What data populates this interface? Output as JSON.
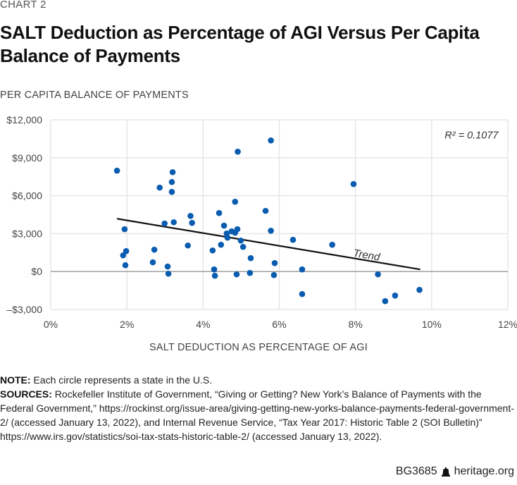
{
  "header": {
    "eyebrow": "CHART 2",
    "title": "SALT Deduction as Percentage of AGI Versus Per Capita Balance of Payments"
  },
  "chart_data": {
    "type": "scatter",
    "title": "SALT Deduction as Percentage of AGI Versus Per Capita Balance of Payments",
    "xlabel": "SALT DEDUCTION AS PERCENTAGE OF AGI",
    "ylabel": "PER CAPITA BALANCE OF PAYMENTS",
    "xlim": [
      0,
      12
    ],
    "ylim": [
      -3000,
      12000
    ],
    "x_ticks": [
      0,
      2,
      4,
      6,
      8,
      10,
      12
    ],
    "x_tick_labels": [
      "0%",
      "2%",
      "4%",
      "6%",
      "8%",
      "10%",
      "12%"
    ],
    "y_ticks": [
      -3000,
      0,
      3000,
      6000,
      9000,
      12000
    ],
    "y_tick_labels": [
      "–$3,000",
      "$0",
      "$3,000",
      "$6,000",
      "$9,000",
      "$12,000"
    ],
    "grid": true,
    "marker_color": "#0a5cb0",
    "trend": {
      "label": "Trend",
      "start": [
        1.74,
        4180
      ],
      "end": [
        9.7,
        170
      ],
      "color": "#111111"
    },
    "annotation": "R² = 0.1077",
    "points": [
      {
        "x": 1.74,
        "y": 7980
      },
      {
        "x": 1.94,
        "y": 3350
      },
      {
        "x": 1.9,
        "y": 1280
      },
      {
        "x": 1.98,
        "y": 1620
      },
      {
        "x": 1.96,
        "y": 500
      },
      {
        "x": 2.86,
        "y": 6640
      },
      {
        "x": 2.72,
        "y": 1730
      },
      {
        "x": 2.68,
        "y": 730
      },
      {
        "x": 2.99,
        "y": 3800
      },
      {
        "x": 3.07,
        "y": 400
      },
      {
        "x": 3.09,
        "y": -170
      },
      {
        "x": 3.18,
        "y": 7080
      },
      {
        "x": 3.2,
        "y": 7860
      },
      {
        "x": 3.18,
        "y": 6300
      },
      {
        "x": 3.23,
        "y": 3900
      },
      {
        "x": 3.6,
        "y": 2060
      },
      {
        "x": 3.67,
        "y": 4400
      },
      {
        "x": 3.71,
        "y": 3850
      },
      {
        "x": 4.25,
        "y": 1670
      },
      {
        "x": 4.29,
        "y": 170
      },
      {
        "x": 4.31,
        "y": -330
      },
      {
        "x": 4.42,
        "y": 4630
      },
      {
        "x": 4.47,
        "y": 2120
      },
      {
        "x": 4.55,
        "y": 3630
      },
      {
        "x": 4.62,
        "y": 3010
      },
      {
        "x": 4.64,
        "y": 2680
      },
      {
        "x": 4.75,
        "y": 3180
      },
      {
        "x": 4.84,
        "y": 3070
      },
      {
        "x": 4.84,
        "y": 5520
      },
      {
        "x": 4.9,
        "y": 3350
      },
      {
        "x": 4.91,
        "y": 9480
      },
      {
        "x": 4.88,
        "y": -220
      },
      {
        "x": 4.99,
        "y": 2450
      },
      {
        "x": 5.05,
        "y": 1950
      },
      {
        "x": 5.25,
        "y": 1060
      },
      {
        "x": 5.23,
        "y": -110
      },
      {
        "x": 5.64,
        "y": 4800
      },
      {
        "x": 5.78,
        "y": 10370
      },
      {
        "x": 5.78,
        "y": 3230
      },
      {
        "x": 5.88,
        "y": 670
      },
      {
        "x": 5.86,
        "y": -280
      },
      {
        "x": 6.36,
        "y": 2510
      },
      {
        "x": 6.6,
        "y": 170
      },
      {
        "x": 6.6,
        "y": -1780
      },
      {
        "x": 7.39,
        "y": 2120
      },
      {
        "x": 7.95,
        "y": 6920
      },
      {
        "x": 8.59,
        "y": -220
      },
      {
        "x": 8.78,
        "y": -2340
      },
      {
        "x": 9.04,
        "y": -1900
      },
      {
        "x": 9.68,
        "y": -1450
      }
    ]
  },
  "notes": {
    "note_label": "NOTE:",
    "note_text": " Each circle represents a state in the U.S.",
    "sources_label": "SOURCES:",
    "sources_text": " Rockefeller Institute of Government, “Giving or Getting? New York’s Balance of Payments with the Federal Government,” https://rockinst.org/issue-area/giving-getting-new-yorks-balance-payments-federal-government-2/ (accessed January 13, 2022), and Internal Revenue Service, “Tax Year 2017: Historic Table 2 (SOI Bulletin)” https://www.irs.gov/statistics/soi-tax-stats-historic-table-2/ (accessed January 13, 2022)."
  },
  "footer": {
    "code": "BG3685",
    "site": "heritage.org"
  }
}
